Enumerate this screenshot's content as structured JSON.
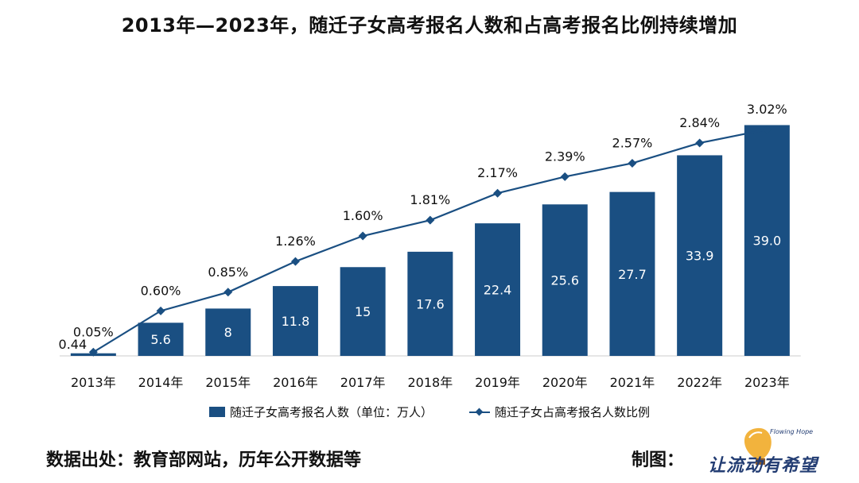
{
  "title": "2013年—2023年，随迁子女高考报名人数和占高考报名比例持续增加",
  "legend": {
    "bar_label": "随迁子女高考报名人数（单位：万人）",
    "line_label": "随迁子女占高考报名人数比例"
  },
  "source": "数据出处：教育部网站，历年公开数据等",
  "credit_label": "制图：",
  "logo": {
    "text": "让流动有希望",
    "tagline": "Flowing Hope"
  },
  "colors": {
    "bar": "#1a4f82",
    "line": "#1a4f82",
    "bar_label": "#ffffff"
  },
  "chart_data": {
    "type": "bar+line",
    "categories": [
      "2013年",
      "2014年",
      "2015年",
      "2016年",
      "2017年",
      "2018年",
      "2019年",
      "2020年",
      "2021年",
      "2022年",
      "2023年"
    ],
    "series": [
      {
        "name": "随迁子女高考报名人数（单位：万人）",
        "type": "bar",
        "values": [
          0.44,
          5.6,
          8,
          11.8,
          15,
          17.6,
          22.4,
          25.6,
          27.7,
          33.9,
          39.0
        ],
        "labels": [
          "0.44",
          "5.6",
          "8",
          "11.8",
          "15",
          "17.6",
          "22.4",
          "25.6",
          "27.7",
          "33.9",
          "39.0"
        ]
      },
      {
        "name": "随迁子女占高考报名人数比例",
        "type": "line",
        "values": [
          0.05,
          0.6,
          0.85,
          1.26,
          1.6,
          1.81,
          2.17,
          2.39,
          2.57,
          2.84,
          3.02
        ],
        "labels": [
          "0.05%",
          "0.60%",
          "0.85%",
          "1.26%",
          "1.60%",
          "1.81%",
          "2.17%",
          "2.39%",
          "2.57%",
          "2.84%",
          "3.02%"
        ]
      }
    ],
    "bar_ylim": [
      0,
      39.6
    ],
    "line_ylim": [
      0,
      3.38
    ],
    "grid": false
  }
}
